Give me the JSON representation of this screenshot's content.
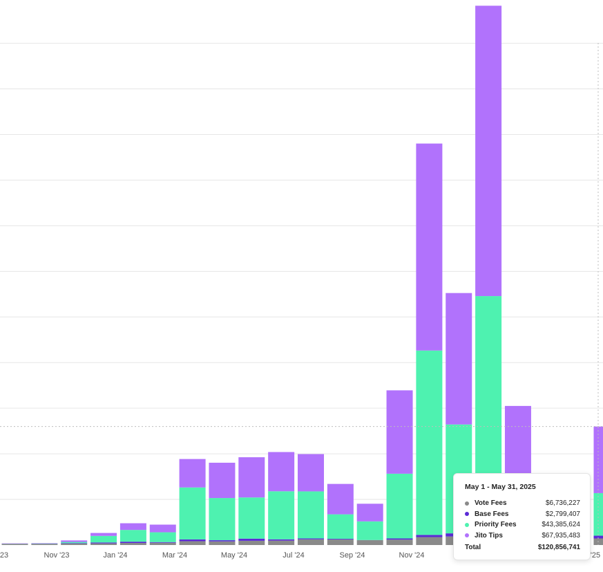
{
  "chart_data": {
    "type": "bar",
    "stacked": true,
    "x_tick_labels": [
      "'23",
      "Nov '23",
      "Jan '24",
      "Mar '24",
      "May '24",
      "Jul '24",
      "Sep '24",
      "Nov '24",
      "'25"
    ],
    "months": [
      "Sep '23",
      "Oct '23",
      "Nov '23",
      "Dec '23",
      "Jan '24",
      "Feb '24",
      "Mar '24",
      "Apr '24",
      "May '24",
      "Jun '24",
      "Jul '24",
      "Aug '24",
      "Sep '24",
      "Oct '24",
      "Nov '24",
      "Dec '24",
      "Jan '25",
      "Feb '25",
      "Mar '25",
      "Apr '25",
      "May '25"
    ],
    "series": [
      {
        "name": "Vote Fees",
        "color": "#8a8a8a",
        "values": [
          1.2,
          1.2,
          1.4,
          1.7,
          2.1,
          2.3,
          3.9,
          3.7,
          4.3,
          4.5,
          5.8,
          5.6,
          5.0,
          5.5,
          8.1,
          8.7,
          8.9,
          8.6,
          6.5,
          7.2,
          6.7
        ]
      },
      {
        "name": "Base Fees",
        "color": "#5b2bd6",
        "values": [
          0.1,
          0.1,
          0.5,
          0.9,
          1.3,
          0.7,
          1.8,
          1.2,
          2.2,
          1.3,
          0.9,
          0.7,
          0.1,
          1.2,
          2.2,
          3.2,
          2.9,
          2.2,
          2.0,
          1.6,
          2.8
        ]
      },
      {
        "name": "Priority Fees",
        "color": "#4ef2b0",
        "values": [
          0.1,
          0.3,
          1.2,
          6.7,
          12.0,
          10.0,
          53.0,
          43.0,
          42.0,
          49.0,
          48.0,
          25.0,
          19.0,
          66.0,
          188.0,
          111.0,
          242.0,
          20.0,
          15.0,
          18.0,
          43.4
        ]
      },
      {
        "name": "Jito Tips",
        "color": "#b172fc",
        "values": [
          0.3,
          0.4,
          1.6,
          3.0,
          6.8,
          7.8,
          29.0,
          36.0,
          41.0,
          40.0,
          38.0,
          31.0,
          18.0,
          85.0,
          211.0,
          134.0,
          296.0,
          111.0,
          12.0,
          18.0,
          67.9
        ]
      }
    ],
    "ylim": [
      0,
      550
    ],
    "grid": true,
    "legend": "tooltip",
    "tooltip": {
      "title": "May 1 - May 31, 2025",
      "rows": [
        {
          "name": "Vote Fees",
          "value": "$6,736,227",
          "color": "#8a8a8a"
        },
        {
          "name": "Base Fees",
          "value": "$2,799,407",
          "color": "#5b2bd6"
        },
        {
          "name": "Priority Fees",
          "value": "$43,385,624",
          "color": "#4ef2b0"
        },
        {
          "name": "Jito Tips",
          "value": "$67,935,483",
          "color": "#b172fc"
        }
      ],
      "total_label": "Total",
      "total_value": "$120,856,741"
    }
  }
}
